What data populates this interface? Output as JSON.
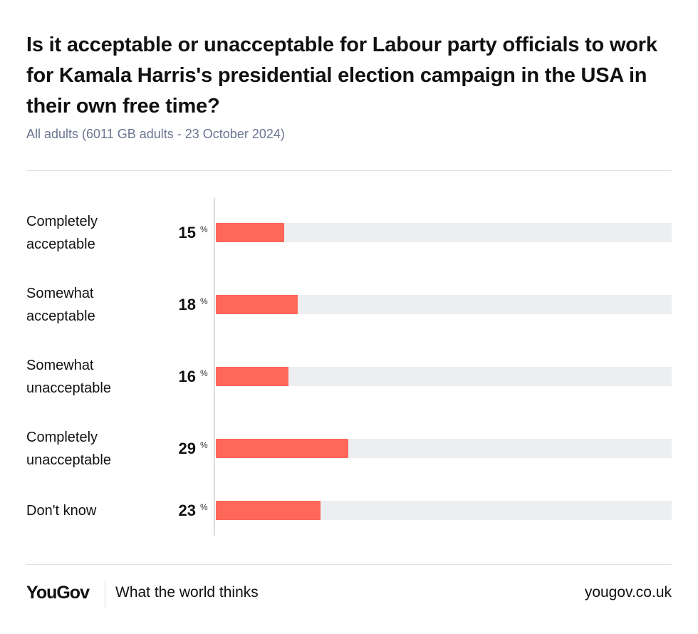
{
  "chart_data": {
    "type": "bar",
    "orientation": "horizontal",
    "title": "Is it acceptable or unacceptable for Labour party officials to work for Kamala Harris's presidential election campaign in the USA in their own free time?",
    "subtitle": "All adults (6011 GB adults - 23 October 2024)",
    "categories": [
      "Completely acceptable",
      "Somewhat acceptable",
      "Somewhat unacceptable",
      "Completely unacceptable",
      "Don't know"
    ],
    "label_lines": [
      [
        "Completely",
        "acceptable"
      ],
      [
        "Somewhat",
        "acceptable"
      ],
      [
        "Somewhat",
        "unacceptable"
      ],
      [
        "Completely",
        "unacceptable"
      ],
      [
        "Don't know"
      ]
    ],
    "values": [
      15,
      18,
      16,
      29,
      23
    ],
    "unit": "%",
    "xlim": [
      0,
      100
    ],
    "grid": false,
    "bar_color": "#ff6759",
    "track_color": "#edeef2"
  },
  "footer": {
    "logo": "YouGov",
    "tagline": "What the world thinks",
    "url": "yougov.co.uk"
  }
}
